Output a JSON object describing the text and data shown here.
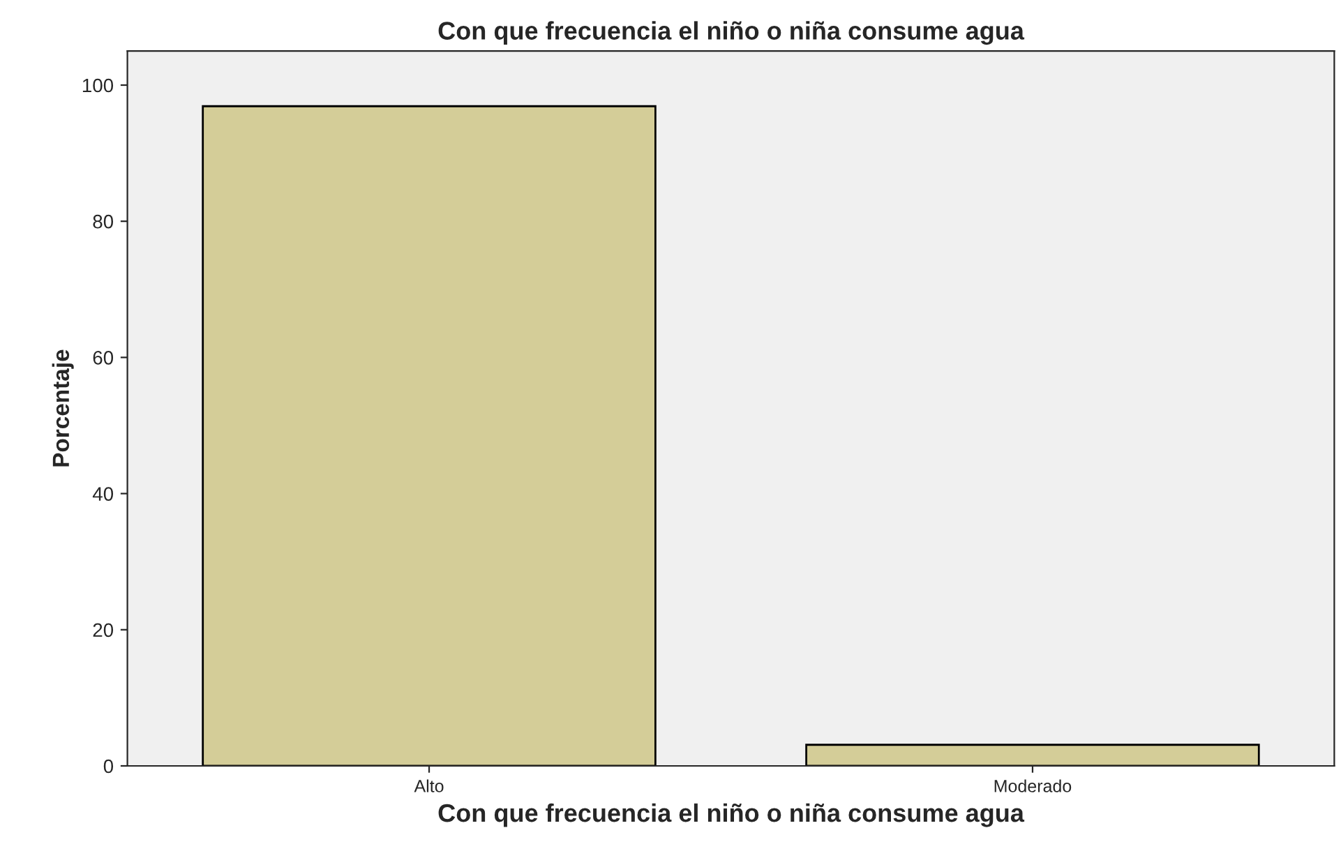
{
  "chart_data": {
    "type": "bar",
    "title": "Con que frecuencia el niño o niña consume agua",
    "xlabel": "Con que frecuencia el niño o niña consume agua",
    "ylabel": "Porcentaje",
    "categories": [
      "Alto",
      "Moderado"
    ],
    "values": [
      96.9,
      3.1
    ],
    "color": "#d4cd98",
    "ylim": [
      0,
      105
    ],
    "yticks": [
      0,
      20,
      40,
      60,
      80,
      100
    ],
    "grid": false,
    "legend": false
  }
}
